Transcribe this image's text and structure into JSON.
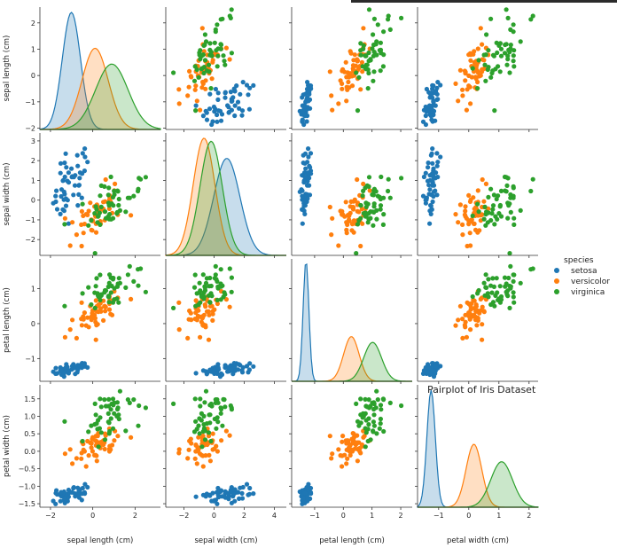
{
  "chart_data": {
    "type": "pairplot",
    "title": "Pairplot of Iris Dataset",
    "variables": [
      "sepal length (cm)",
      "sepal width (cm)",
      "petal length (cm)",
      "petal width (cm)"
    ],
    "legend": {
      "title": "species",
      "placement": "right",
      "entries": [
        {
          "name": "setosa",
          "color": "#1f77b4"
        },
        {
          "name": "versicolor",
          "color": "#ff7f0e"
        },
        {
          "name": "virginica",
          "color": "#2ca02c"
        }
      ]
    },
    "axes": [
      {
        "name": "sepal length (cm)",
        "lim": [
          -2.5,
          3.2
        ],
        "ticks": [
          -2,
          0,
          2
        ],
        "labels": [
          "−2",
          "0",
          "2"
        ]
      },
      {
        "name": "sepal width (cm)",
        "lim": [
          -3.2,
          4.8
        ],
        "ticks": [
          -2,
          0,
          2,
          4
        ],
        "labels": [
          "−2",
          "0",
          "2",
          "4"
        ]
      },
      {
        "name": "petal length (cm)",
        "lim": [
          -1.8,
          2.4
        ],
        "ticks": [
          -1,
          0,
          1,
          2
        ],
        "labels": [
          "−1",
          "0",
          "1",
          "2"
        ]
      },
      {
        "name": "petal width (cm)",
        "lim": [
          -1.7,
          2.3
        ],
        "ticks": [
          -1,
          0,
          1,
          2
        ],
        "labels": [
          "−1",
          "0",
          "1",
          "2"
        ]
      }
    ],
    "row_axes": [
      {
        "lim": [
          -2.05,
          2.6
        ],
        "ticks": [
          -2,
          -1,
          0,
          1,
          2
        ],
        "labels": [
          "−2",
          "−1",
          "0",
          "1",
          "2"
        ]
      },
      {
        "lim": [
          -2.8,
          3.4
        ],
        "ticks": [
          -2,
          -1,
          0,
          1,
          2,
          3
        ],
        "labels": [
          "−2",
          "−1",
          "0",
          "1",
          "2",
          "3"
        ]
      },
      {
        "lim": [
          -1.65,
          1.85
        ],
        "ticks": [
          -1,
          0,
          1
        ],
        "labels": [
          "−1",
          "0",
          "1"
        ]
      },
      {
        "lim": [
          -1.6,
          1.9
        ],
        "ticks": [
          -1.5,
          -1.0,
          -0.5,
          0.0,
          0.5,
          1.0,
          1.5
        ],
        "labels": [
          "−1.5",
          "−1.0",
          "−0.5",
          "0.0",
          "0.5",
          "1.0",
          "1.5"
        ]
      }
    ],
    "species_stats": [
      {
        "name": "setosa",
        "mean": [
          -1.01,
          0.85,
          -1.3,
          -1.25
        ],
        "sd": [
          0.43,
          0.87,
          0.1,
          0.14
        ]
      },
      {
        "name": "versicolor",
        "mean": [
          0.11,
          -0.66,
          0.28,
          0.17
        ],
        "sd": [
          0.62,
          0.72,
          0.27,
          0.26
        ]
      },
      {
        "name": "virginica",
        "mean": [
          0.9,
          -0.19,
          1.02,
          1.09
        ],
        "sd": [
          0.77,
          0.74,
          0.31,
          0.36
        ]
      }
    ],
    "points_per_species": 50
  }
}
